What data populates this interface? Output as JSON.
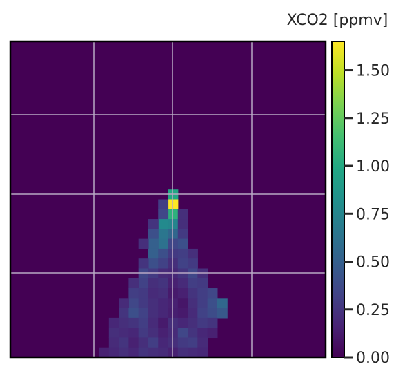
{
  "chart_data": {
    "type": "heatmap",
    "title": "",
    "xlabel": "",
    "ylabel": "",
    "colormap": "viridis",
    "grid": true,
    "colorbar": {
      "label": "XCO2 [ppmv]",
      "range": [
        0,
        1.65
      ],
      "ticks": [
        0.0,
        0.25,
        0.5,
        0.75,
        1.0,
        1.25,
        1.5
      ],
      "tick_labels": [
        "0.00",
        "0.25",
        "0.50",
        "0.75",
        "1.00",
        "1.25",
        "1.50"
      ]
    },
    "grid_size": [
      32,
      32
    ],
    "cells": [
      [
        16,
        15,
        0.98
      ],
      [
        16,
        16,
        1.65
      ],
      [
        15,
        16,
        0.3
      ],
      [
        16,
        17,
        1.05
      ],
      [
        15,
        17,
        0.35
      ],
      [
        17,
        17,
        0.22
      ],
      [
        16,
        18,
        0.75
      ],
      [
        15,
        18,
        0.78
      ],
      [
        14,
        18,
        0.25
      ],
      [
        17,
        18,
        0.22
      ],
      [
        15,
        19,
        0.65
      ],
      [
        16,
        19,
        0.55
      ],
      [
        14,
        19,
        0.4
      ],
      [
        17,
        19,
        0.28
      ],
      [
        15,
        20,
        0.62
      ],
      [
        14,
        20,
        0.5
      ],
      [
        16,
        20,
        0.35
      ],
      [
        17,
        20,
        0.4
      ],
      [
        13,
        20,
        0.22
      ],
      [
        14,
        21,
        0.5
      ],
      [
        15,
        21,
        0.4
      ],
      [
        16,
        21,
        0.28
      ],
      [
        17,
        21,
        0.3
      ],
      [
        18,
        21,
        0.22
      ],
      [
        14,
        22,
        0.4
      ],
      [
        15,
        22,
        0.32
      ],
      [
        16,
        22,
        0.22
      ],
      [
        17,
        22,
        0.32
      ],
      [
        18,
        22,
        0.28
      ],
      [
        13,
        22,
        0.25
      ],
      [
        13,
        23,
        0.35
      ],
      [
        14,
        23,
        0.28
      ],
      [
        15,
        23,
        0.2
      ],
      [
        16,
        23,
        0.18
      ],
      [
        17,
        23,
        0.25
      ],
      [
        18,
        23,
        0.35
      ],
      [
        19,
        23,
        0.22
      ],
      [
        13,
        24,
        0.32
      ],
      [
        14,
        24,
        0.22
      ],
      [
        15,
        24,
        0.25
      ],
      [
        16,
        24,
        0.15
      ],
      [
        17,
        24,
        0.2
      ],
      [
        18,
        24,
        0.3
      ],
      [
        19,
        24,
        0.28
      ],
      [
        12,
        24,
        0.22
      ],
      [
        12,
        25,
        0.3
      ],
      [
        13,
        25,
        0.28
      ],
      [
        14,
        25,
        0.2
      ],
      [
        15,
        25,
        0.22
      ],
      [
        16,
        25,
        0.12
      ],
      [
        17,
        25,
        0.15
      ],
      [
        18,
        25,
        0.25
      ],
      [
        19,
        25,
        0.3
      ],
      [
        20,
        25,
        0.35
      ],
      [
        12,
        26,
        0.35
      ],
      [
        13,
        26,
        0.28
      ],
      [
        14,
        26,
        0.22
      ],
      [
        15,
        26,
        0.18
      ],
      [
        16,
        26,
        0.15
      ],
      [
        17,
        26,
        0.1
      ],
      [
        18,
        26,
        0.22
      ],
      [
        19,
        26,
        0.3
      ],
      [
        20,
        26,
        0.4
      ],
      [
        21,
        26,
        0.55
      ],
      [
        11,
        26,
        0.2
      ],
      [
        11,
        27,
        0.25
      ],
      [
        12,
        27,
        0.4
      ],
      [
        13,
        27,
        0.32
      ],
      [
        14,
        27,
        0.22
      ],
      [
        15,
        27,
        0.18
      ],
      [
        16,
        27,
        0.14
      ],
      [
        17,
        27,
        0.12
      ],
      [
        18,
        27,
        0.2
      ],
      [
        19,
        27,
        0.32
      ],
      [
        20,
        27,
        0.38
      ],
      [
        21,
        27,
        0.45
      ],
      [
        11,
        28,
        0.22
      ],
      [
        12,
        28,
        0.25
      ],
      [
        13,
        28,
        0.3
      ],
      [
        14,
        28,
        0.2
      ],
      [
        15,
        28,
        0.12
      ],
      [
        16,
        28,
        0.22
      ],
      [
        17,
        28,
        0.18
      ],
      [
        18,
        28,
        0.22
      ],
      [
        19,
        28,
        0.28
      ],
      [
        20,
        28,
        0.25
      ],
      [
        10,
        28,
        0.18
      ],
      [
        10,
        29,
        0.22
      ],
      [
        11,
        29,
        0.2
      ],
      [
        12,
        29,
        0.18
      ],
      [
        13,
        29,
        0.28
      ],
      [
        14,
        29,
        0.22
      ],
      [
        15,
        29,
        0.15
      ],
      [
        16,
        29,
        0.2
      ],
      [
        17,
        29,
        0.35
      ],
      [
        18,
        29,
        0.25
      ],
      [
        19,
        29,
        0.18
      ],
      [
        20,
        29,
        0.15
      ],
      [
        10,
        30,
        0.2
      ],
      [
        11,
        30,
        0.25
      ],
      [
        12,
        30,
        0.15
      ],
      [
        13,
        30,
        0.22
      ],
      [
        14,
        30,
        0.3
      ],
      [
        15,
        30,
        0.18
      ],
      [
        16,
        30,
        0.22
      ],
      [
        17,
        30,
        0.28
      ],
      [
        18,
        30,
        0.3
      ],
      [
        19,
        30,
        0.2
      ],
      [
        9,
        31,
        0.15
      ],
      [
        10,
        31,
        0.18
      ],
      [
        11,
        31,
        0.22
      ],
      [
        12,
        31,
        0.18
      ],
      [
        13,
        31,
        0.25
      ],
      [
        14,
        31,
        0.22
      ],
      [
        15,
        31,
        0.2
      ],
      [
        16,
        31,
        0.15
      ],
      [
        17,
        31,
        0.22
      ],
      [
        18,
        31,
        0.2
      ],
      [
        19,
        31,
        0.18
      ]
    ]
  }
}
